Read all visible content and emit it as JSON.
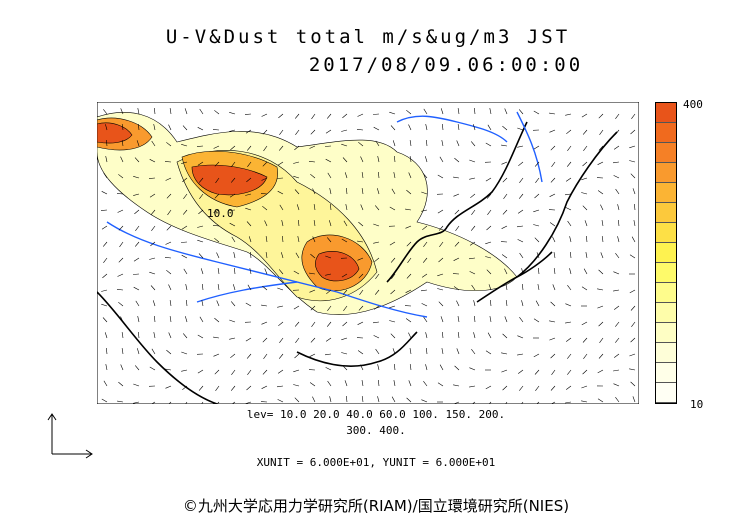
{
  "title_line1": "U-V&Dust total m/s&ug/m3 JST",
  "title_line2": "2017/08/09.06:00:00",
  "colorbar": {
    "max_label": "400",
    "min_label": "10",
    "colors": [
      "#e8541a",
      "#f06a1e",
      "#f58026",
      "#f99a2e",
      "#fbb434",
      "#fcc93c",
      "#fde046",
      "#fef250",
      "#fefa6a",
      "#fefc8c",
      "#fefdaa",
      "#fefec4",
      "#fefed8",
      "#ffffe8",
      "#fffff4"
    ]
  },
  "levels_line1": "lev= 10.0 20.0 40.0 60.0 100. 150. 200.",
  "levels_line2": "300. 400.",
  "units_line": "XUNIT = 6.000E+01, YUNIT = 6.000E+01",
  "contour_label": "10.0",
  "copyright": "©九州大学応用力学研究所(RIAM)/国立環境研究所(NIES)"
}
